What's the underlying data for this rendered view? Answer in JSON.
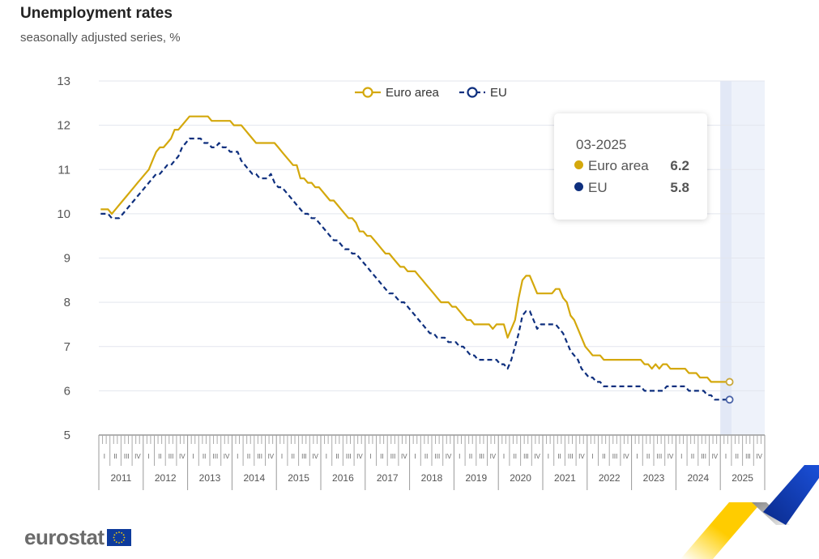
{
  "header": {
    "title": "Unemployment rates",
    "subtitle": "seasonally adjusted series, %"
  },
  "colors": {
    "euro_area": "#d4a80c",
    "eu": "#0e2f7e",
    "grid": "#e3e6ee",
    "highlight": "#eef2fa"
  },
  "tooltip": {
    "date": "03-2025",
    "rows": [
      {
        "label": "Euro area",
        "value": "6.2"
      },
      {
        "label": "EU",
        "value": "5.8"
      }
    ]
  },
  "logo": {
    "text": "eurostat"
  },
  "chart_data": {
    "type": "line",
    "title": "Unemployment rates",
    "subtitle": "seasonally adjusted series, %",
    "xlabel": "",
    "ylabel": "",
    "ylim": [
      5,
      13
    ],
    "yticks": [
      5,
      6,
      7,
      8,
      9,
      10,
      11,
      12,
      13
    ],
    "x_start": "01-2011",
    "x_end": "03-2025",
    "frequency": "monthly",
    "years": [
      "2011",
      "2012",
      "2013",
      "2014",
      "2015",
      "2016",
      "2017",
      "2018",
      "2019",
      "2020",
      "2021",
      "2022",
      "2023",
      "2024",
      "2025"
    ],
    "quarters": [
      "I",
      "II",
      "III",
      "IV"
    ],
    "grid": true,
    "legend": "top-center",
    "highlighted_period": "2025",
    "series": [
      {
        "name": "Euro area",
        "style": "solid",
        "values": [
          10.1,
          10.1,
          10.1,
          10.0,
          10.1,
          10.2,
          10.3,
          10.4,
          10.5,
          10.6,
          10.7,
          10.8,
          10.9,
          11.0,
          11.2,
          11.4,
          11.5,
          11.5,
          11.6,
          11.7,
          11.9,
          11.9,
          12.0,
          12.1,
          12.2,
          12.2,
          12.2,
          12.2,
          12.2,
          12.2,
          12.1,
          12.1,
          12.1,
          12.1,
          12.1,
          12.1,
          12.0,
          12.0,
          12.0,
          11.9,
          11.8,
          11.7,
          11.6,
          11.6,
          11.6,
          11.6,
          11.6,
          11.6,
          11.5,
          11.4,
          11.3,
          11.2,
          11.1,
          11.1,
          10.8,
          10.8,
          10.7,
          10.7,
          10.6,
          10.6,
          10.5,
          10.4,
          10.3,
          10.3,
          10.2,
          10.1,
          10.0,
          9.9,
          9.9,
          9.8,
          9.6,
          9.6,
          9.5,
          9.5,
          9.4,
          9.3,
          9.2,
          9.1,
          9.1,
          9.0,
          8.9,
          8.8,
          8.8,
          8.7,
          8.7,
          8.7,
          8.6,
          8.5,
          8.4,
          8.3,
          8.2,
          8.1,
          8.0,
          8.0,
          8.0,
          7.9,
          7.9,
          7.8,
          7.7,
          7.6,
          7.6,
          7.5,
          7.5,
          7.5,
          7.5,
          7.5,
          7.4,
          7.5,
          7.5,
          7.5,
          7.2,
          7.4,
          7.6,
          8.1,
          8.5,
          8.6,
          8.6,
          8.4,
          8.2,
          8.2,
          8.2,
          8.2,
          8.2,
          8.3,
          8.3,
          8.1,
          8.0,
          7.7,
          7.6,
          7.4,
          7.2,
          7.0,
          6.9,
          6.8,
          6.8,
          6.8,
          6.7,
          6.7,
          6.7,
          6.7,
          6.7,
          6.7,
          6.7,
          6.7,
          6.7,
          6.7,
          6.7,
          6.6,
          6.6,
          6.5,
          6.6,
          6.5,
          6.6,
          6.6,
          6.5,
          6.5,
          6.5,
          6.5,
          6.5,
          6.4,
          6.4,
          6.4,
          6.3,
          6.3,
          6.3,
          6.2,
          6.2,
          6.2,
          6.2,
          6.2,
          6.2
        ]
      },
      {
        "name": "EU",
        "style": "dashed",
        "values": [
          10.0,
          10.0,
          10.0,
          9.9,
          9.9,
          9.9,
          10.0,
          10.1,
          10.2,
          10.3,
          10.4,
          10.5,
          10.6,
          10.7,
          10.8,
          10.9,
          10.9,
          11.0,
          11.1,
          11.1,
          11.2,
          11.3,
          11.5,
          11.6,
          11.7,
          11.7,
          11.7,
          11.7,
          11.6,
          11.6,
          11.5,
          11.5,
          11.6,
          11.5,
          11.5,
          11.4,
          11.4,
          11.4,
          11.2,
          11.1,
          11.0,
          10.9,
          10.9,
          10.8,
          10.8,
          10.8,
          10.9,
          10.7,
          10.6,
          10.6,
          10.5,
          10.4,
          10.3,
          10.2,
          10.1,
          10.0,
          10.0,
          9.9,
          9.9,
          9.8,
          9.7,
          9.6,
          9.5,
          9.4,
          9.4,
          9.3,
          9.2,
          9.2,
          9.1,
          9.1,
          9.0,
          8.9,
          8.8,
          8.7,
          8.6,
          8.5,
          8.4,
          8.3,
          8.2,
          8.2,
          8.1,
          8.0,
          8.0,
          7.9,
          7.8,
          7.7,
          7.6,
          7.5,
          7.4,
          7.3,
          7.3,
          7.2,
          7.2,
          7.2,
          7.1,
          7.1,
          7.1,
          7.0,
          7.0,
          6.9,
          6.8,
          6.8,
          6.7,
          6.7,
          6.7,
          6.7,
          6.7,
          6.7,
          6.6,
          6.6,
          6.5,
          6.7,
          7.0,
          7.3,
          7.7,
          7.8,
          7.8,
          7.6,
          7.4,
          7.5,
          7.5,
          7.5,
          7.5,
          7.5,
          7.4,
          7.3,
          7.1,
          6.9,
          6.8,
          6.7,
          6.5,
          6.4,
          6.3,
          6.3,
          6.2,
          6.2,
          6.1,
          6.1,
          6.1,
          6.1,
          6.1,
          6.1,
          6.1,
          6.1,
          6.1,
          6.1,
          6.1,
          6.0,
          6.0,
          6.0,
          6.0,
          6.0,
          6.0,
          6.1,
          6.1,
          6.1,
          6.1,
          6.1,
          6.1,
          6.0,
          6.0,
          6.0,
          6.0,
          6.0,
          5.9,
          5.9,
          5.8,
          5.8,
          5.8,
          5.8,
          5.8
        ]
      }
    ]
  }
}
